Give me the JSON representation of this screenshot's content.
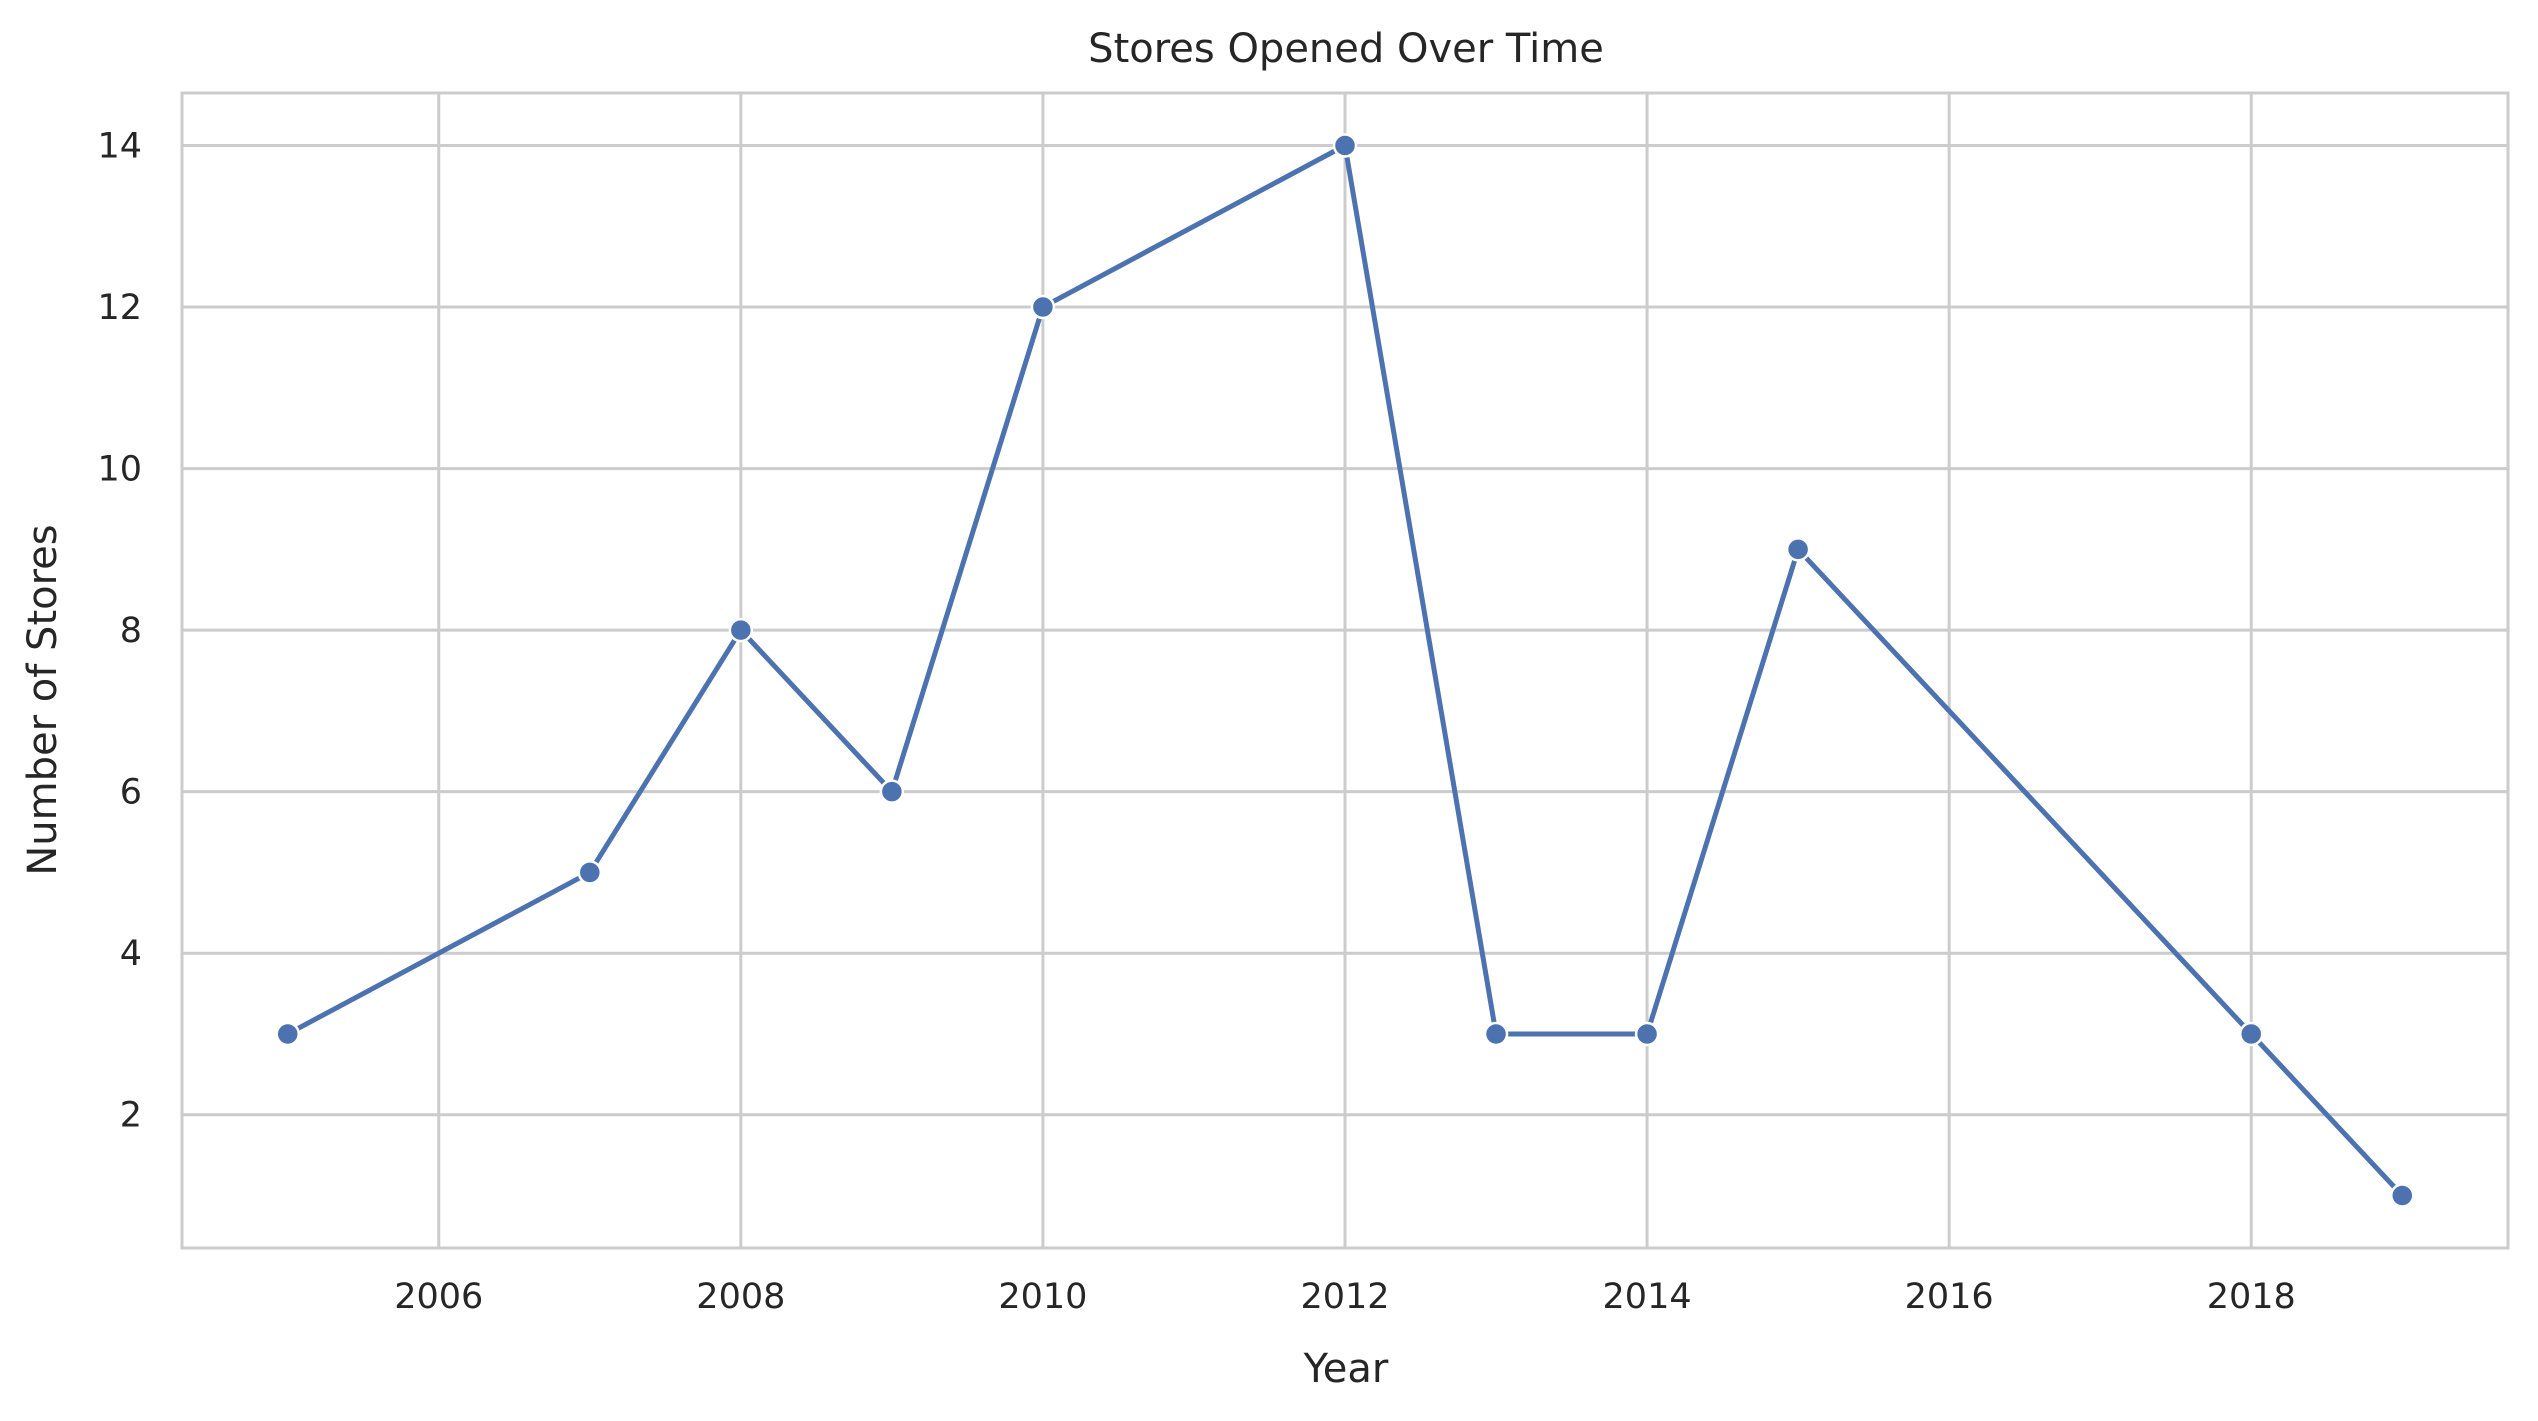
{
  "chart_data": {
    "type": "line",
    "title": "Stores Opened Over Time",
    "xlabel": "Year",
    "ylabel": "Number of Stores",
    "x": [
      2005,
      2007,
      2008,
      2009,
      2010,
      2012,
      2013,
      2014,
      2015,
      2018,
      2019
    ],
    "series": [
      {
        "values": [
          3,
          5,
          8,
          6,
          12,
          14,
          3,
          3,
          9,
          3,
          1
        ]
      }
    ],
    "xlim": [
      2004.3,
      2019.7
    ],
    "ylim": [
      0.35,
      14.65
    ],
    "xticks": [
      2006,
      2008,
      2010,
      2012,
      2014,
      2016,
      2018
    ],
    "xtick_labels": [
      "2006",
      "2008",
      "2010",
      "2012",
      "2014",
      "2016",
      "2018"
    ],
    "yticks": [
      2,
      4,
      6,
      8,
      10,
      12,
      14
    ],
    "ytick_labels": [
      "2",
      "4",
      "6",
      "8",
      "10",
      "12",
      "14"
    ],
    "grid": true,
    "marker": "circle",
    "colors": {
      "line": "#4c72b0",
      "marker_edge": "#ffffff",
      "grid": "#cccccc",
      "spine": "#cccccc",
      "text": "#262626",
      "background": "#ffffff"
    }
  }
}
